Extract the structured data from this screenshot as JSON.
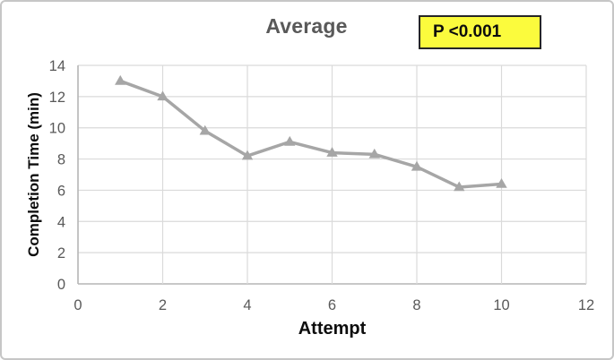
{
  "chart": {
    "title": "Average",
    "p_value_label": "P <0.001",
    "x_axis_title": "Attempt",
    "y_axis_title": "Completion Time (min)"
  },
  "chart_data": {
    "type": "line",
    "title": "Average",
    "xlabel": "Attempt",
    "ylabel": "Completion Time (min)",
    "series_name": "Average",
    "x": [
      1,
      2,
      3,
      4,
      5,
      6,
      7,
      8,
      9,
      10
    ],
    "y": [
      13.0,
      12.0,
      9.8,
      8.2,
      9.1,
      8.4,
      8.3,
      7.5,
      6.2,
      6.4
    ],
    "xlim": [
      0,
      12
    ],
    "ylim": [
      0,
      14
    ],
    "x_ticks": [
      0,
      2,
      4,
      6,
      8,
      10,
      12
    ],
    "y_ticks": [
      0,
      2,
      4,
      6,
      8,
      10,
      12,
      14
    ],
    "grid": true,
    "legend": "none",
    "marker": "triangle",
    "annotation": {
      "text": "P <0.001",
      "position": "top-right"
    },
    "colors": {
      "series": "#a6a6a6",
      "title": "#595959",
      "tick_label": "#595959",
      "axis_title": "#0d0d0d",
      "gridline": "#dadada",
      "axis_line": "#b5b5b5",
      "annotation_bg": "#fbfb3d",
      "annotation_border": "#262626",
      "frame_border": "#c6c6c6",
      "background": "#ffffff"
    }
  }
}
